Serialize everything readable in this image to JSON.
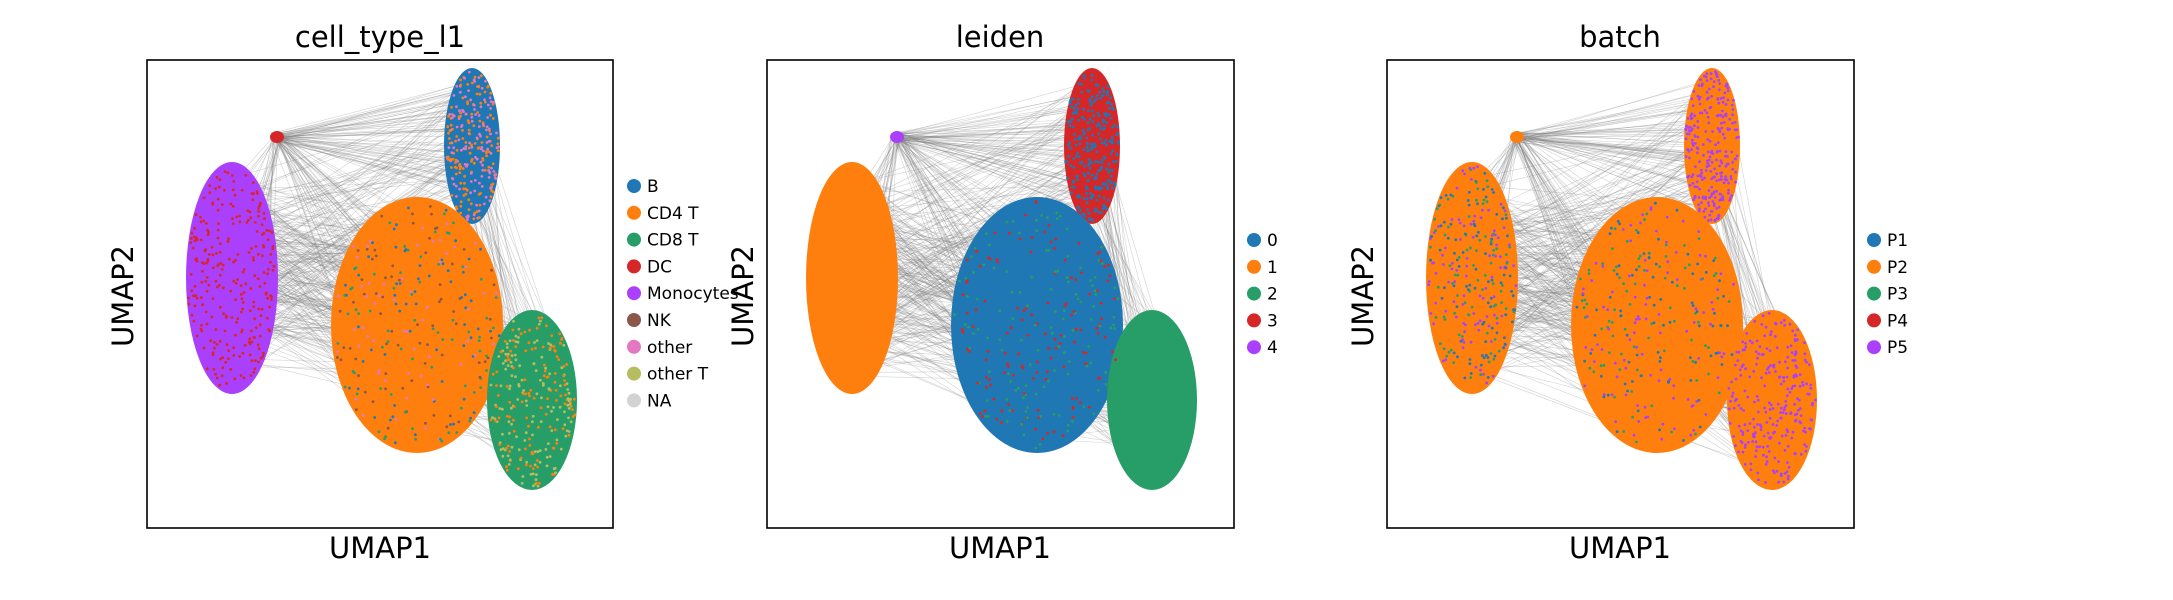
{
  "figure": {
    "background": "#ffffff",
    "edge_color": "#808080"
  },
  "chart_data": [
    {
      "type": "scatter",
      "title": "cell_type_l1",
      "xlabel": "UMAP1",
      "ylabel": "UMAP2",
      "legend": "right",
      "grid": false,
      "categories": [
        {
          "name": "B",
          "color": "#1f77b4"
        },
        {
          "name": "CD4 T",
          "color": "#ff7f0e"
        },
        {
          "name": "CD8 T",
          "color": "#279e68"
        },
        {
          "name": "DC",
          "color": "#d62728"
        },
        {
          "name": "Monocytes",
          "color": "#aa40fc"
        },
        {
          "name": "NK",
          "color": "#8c564b"
        },
        {
          "name": "other",
          "color": "#e377c2"
        },
        {
          "name": "other T",
          "color": "#b5bd61"
        },
        {
          "name": "NA",
          "color": "#d3d3d3"
        }
      ]
    },
    {
      "type": "scatter",
      "title": "leiden",
      "xlabel": "UMAP1",
      "ylabel": "UMAP2",
      "legend": "right",
      "grid": false,
      "categories": [
        {
          "name": "0",
          "color": "#1f77b4"
        },
        {
          "name": "1",
          "color": "#ff7f0e"
        },
        {
          "name": "2",
          "color": "#279e68"
        },
        {
          "name": "3",
          "color": "#d62728"
        },
        {
          "name": "4",
          "color": "#aa40fc"
        }
      ]
    },
    {
      "type": "scatter",
      "title": "batch",
      "xlabel": "UMAP1",
      "ylabel": "UMAP2",
      "legend": "right",
      "grid": false,
      "categories": [
        {
          "name": "P1",
          "color": "#1f77b4"
        },
        {
          "name": "P2",
          "color": "#ff7f0e"
        },
        {
          "name": "P3",
          "color": "#279e68"
        },
        {
          "name": "P4",
          "color": "#d62728"
        },
        {
          "name": "P5",
          "color": "#aa40fc"
        }
      ]
    }
  ]
}
